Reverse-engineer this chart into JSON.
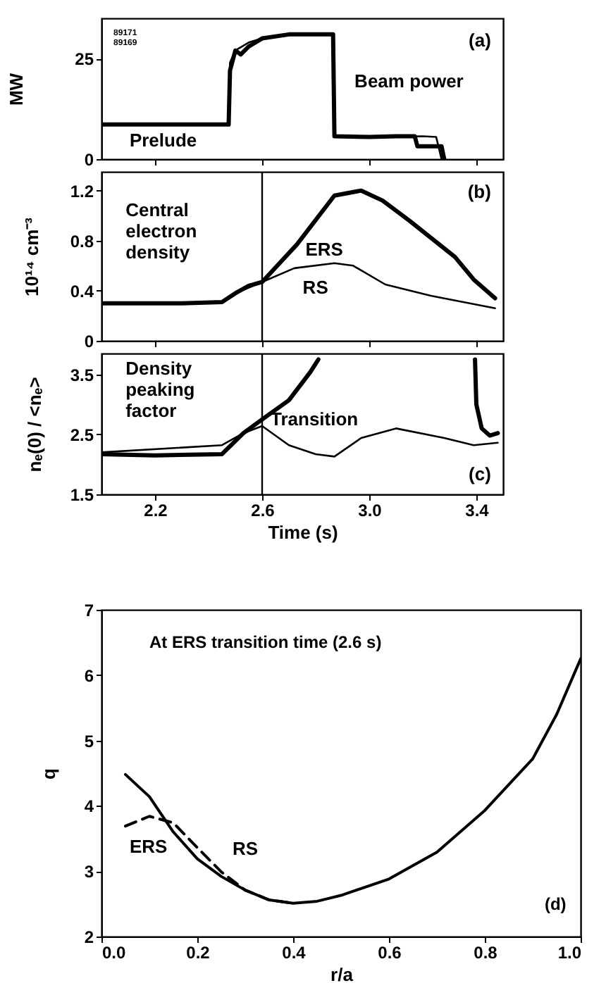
{
  "chart_data": [
    {
      "type": "line",
      "ylabel": "MW",
      "xlim": [
        2.0,
        3.5
      ],
      "ylim": [
        0,
        35
      ],
      "xticks": [
        2.2,
        2.6,
        3.0,
        3.4
      ],
      "yticks": [
        0,
        25
      ],
      "tick_labels": "y",
      "grid": false,
      "annotations": [
        "89171",
        "89169",
        "(a)",
        "Beam power",
        "Prelude"
      ],
      "series": [
        {
          "color": "#000000",
          "x": [
            2.0,
            2.475,
            2.48,
            2.5,
            2.52,
            2.55,
            2.6,
            2.7,
            2.8,
            2.865,
            2.87,
            3.0,
            3.1,
            3.17,
            3.18,
            3.27,
            3.28
          ],
          "values": [
            8.6,
            8.6,
            22,
            27,
            26,
            28,
            30,
            31,
            31,
            31,
            5.7,
            5.5,
            5.7,
            5.7,
            3.2,
            3.2,
            0
          ]
        },
        {
          "color": "#000000",
          "x": [
            2.0,
            2.475,
            2.48,
            2.5,
            2.55,
            2.6,
            2.7,
            2.865,
            2.87,
            3.0,
            3.2,
            3.25,
            3.27
          ],
          "values": [
            8.6,
            8.6,
            24,
            27,
            29,
            30,
            31,
            31,
            5.7,
            5.5,
            5.7,
            5.5,
            0
          ]
        }
      ]
    },
    {
      "type": "line",
      "ylabel": "10¹⁴ cm⁻³",
      "xlim": [
        2.0,
        3.5
      ],
      "ylim": [
        0,
        1.35
      ],
      "xticks": [
        2.2,
        2.6,
        3.0,
        3.4
      ],
      "yticks": [
        0,
        0.4,
        0.8,
        1.2
      ],
      "tick_labels": "y",
      "grid": false,
      "annotations": [
        "Central electron density",
        "(b)"
      ],
      "ref_lines": [
        {
          "axis": "x",
          "value": 2.6,
          "color": "#000000"
        }
      ],
      "series": [
        {
          "name": "ERS",
          "color": "#000000",
          "x": [
            2.0,
            2.3,
            2.45,
            2.5,
            2.55,
            2.6,
            2.73,
            2.87,
            2.97,
            3.05,
            3.15,
            3.32,
            3.39,
            3.47
          ],
          "values": [
            0.3,
            0.3,
            0.31,
            0.38,
            0.44,
            0.47,
            0.77,
            1.16,
            1.2,
            1.12,
            0.96,
            0.67,
            0.49,
            0.34
          ]
        },
        {
          "name": "RS",
          "color": "#000000",
          "x": [
            2.0,
            2.45,
            2.5,
            2.6,
            2.72,
            2.87,
            2.94,
            3.06,
            3.23,
            3.47
          ],
          "values": [
            0.3,
            0.31,
            0.38,
            0.47,
            0.58,
            0.62,
            0.6,
            0.45,
            0.36,
            0.26
          ]
        }
      ]
    },
    {
      "type": "line",
      "xlabel": "Time (s)",
      "ylabel": "nₑ(0) / <nₑ>",
      "xlim": [
        2.0,
        3.5
      ],
      "ylim": [
        1.5,
        3.85
      ],
      "xticks": [
        2.2,
        2.6,
        {
          "value": 3.0,
          "label": "3.0"
        },
        3.4
      ],
      "yticks": [
        1.5,
        2.5,
        3.5
      ],
      "grid": false,
      "annotations": [
        "Density peaking factor",
        {
          "text": "Transition",
          "x": 2.6,
          "y": 2.75
        },
        "(c)"
      ],
      "ref_lines": [
        {
          "axis": "x",
          "value": 2.6,
          "color": "#000000"
        }
      ],
      "series": [
        {
          "color": "#000000",
          "x": [
            2.0,
            2.2,
            2.45,
            2.53,
            2.6,
            2.7,
            2.78,
            2.81,
            2.84,
            3.395,
            3.4,
            3.42,
            3.45,
            3.48
          ],
          "values": [
            2.17,
            2.15,
            2.17,
            2.52,
            2.75,
            3.07,
            3.54,
            3.75,
            null,
            3.75,
            3.0,
            2.6,
            2.48,
            2.52
          ]
        },
        {
          "color": "#000000",
          "x": [
            2.0,
            2.45,
            2.53,
            2.6,
            2.7,
            2.8,
            2.87,
            2.97,
            3.1,
            3.28,
            3.39,
            3.48
          ],
          "values": [
            2.2,
            2.32,
            2.52,
            2.64,
            2.32,
            2.17,
            2.13,
            2.44,
            2.6,
            2.44,
            2.32,
            2.36
          ]
        }
      ]
    },
    {
      "type": "line",
      "xlabel": "r/a",
      "ylabel": "q",
      "xlim": [
        0,
        1
      ],
      "ylim": [
        2,
        7
      ],
      "xticks": [
        {
          "value": 0,
          "label": "0.0"
        },
        0.2,
        0.4,
        0.6,
        0.8,
        {
          "value": 1,
          "label": "1.0"
        }
      ],
      "yticks": [
        2,
        3,
        4,
        5,
        6,
        7
      ],
      "grid": false,
      "annotations": [
        "At ERS transition time (2.6 s)",
        "(d)"
      ],
      "series": [
        {
          "name": "ERS",
          "color": "#000000",
          "line_style": "solid",
          "x": [
            0.05,
            0.1,
            0.15,
            0.2,
            0.25,
            0.3,
            0.35,
            0.4,
            0.45,
            0.5,
            0.6,
            0.7,
            0.8,
            0.9,
            0.95,
            1.0
          ],
          "values": [
            4.48,
            4.14,
            3.6,
            3.19,
            2.92,
            2.71,
            2.56,
            2.51,
            2.54,
            2.63,
            2.88,
            3.29,
            3.93,
            4.72,
            5.4,
            6.25
          ]
        },
        {
          "name": "RS",
          "color": "#000000",
          "line_style": "dashed",
          "x": [
            0.05,
            0.1,
            0.15,
            0.2,
            0.25,
            0.3,
            0.35,
            0.4
          ],
          "values": [
            3.69,
            3.84,
            3.74,
            3.36,
            2.99,
            2.71,
            2.56,
            2.51
          ]
        }
      ]
    }
  ]
}
